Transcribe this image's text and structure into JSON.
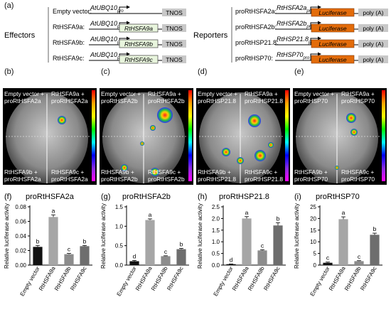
{
  "panel_a": {
    "label": "(a)",
    "effectors_title": "Effectors",
    "reporters_title": "Reporters",
    "effectors": [
      {
        "name": "Empty vector:",
        "promoter": "AtUBQ10",
        "promoter_sub": "pro",
        "gene": "",
        "terminator": "TNOS"
      },
      {
        "name": "RtHSFA9a:",
        "promoter": "AtUBQ10",
        "promoter_sub": "pro",
        "gene": "RtHSFA9a",
        "terminator": "TNOS"
      },
      {
        "name": "RtHSFA9b:",
        "promoter": "AtUBQ10",
        "promoter_sub": "pro",
        "gene": "RtHSFA9b",
        "terminator": "TNOS"
      },
      {
        "name": "RtHSFA9c:",
        "promoter": "AtUBQ10",
        "promoter_sub": "pro",
        "gene": "RtHSFA9c",
        "terminator": "TNOS"
      }
    ],
    "reporters": [
      {
        "name": "proRtHSFA2a:",
        "promoter": "RtHSFA2a",
        "promoter_sub": "pro",
        "gene": "Luciferase",
        "terminator": "poly (A)"
      },
      {
        "name": "proRtHSFA2b:",
        "promoter": "RtHSFA2b",
        "promoter_sub": "pro",
        "gene": "Luciferase",
        "terminator": "poly (A)"
      },
      {
        "name": "proRtHSP21.8:",
        "promoter": "RtHSP21.8",
        "promoter_sub": "pro",
        "gene": "Luciferase",
        "terminator": "poly (A)"
      },
      {
        "name": "proRtHSP70:",
        "promoter": "RtHSP70",
        "promoter_sub": "pro",
        "gene": "Luciferase",
        "terminator": "poly (A)"
      }
    ],
    "colors": {
      "gene_fill": "#e8f5dd",
      "luciferase_fill": "#e36c0a",
      "terminator_fill": "#c8c8c8"
    }
  },
  "photos": [
    {
      "label": "(b)",
      "tl": [
        "Empty vector +",
        "proRtHSFA2a"
      ],
      "tr": [
        "RtHSFA9a +",
        "proRtHSFA2a"
      ],
      "bl": [
        "RtHSFA9b +",
        "proRtHSFA2a"
      ],
      "br": [
        "RtHSFA9c +",
        "proRtHSFA2a"
      ]
    },
    {
      "label": "(c)",
      "tl": [
        "Empty vector +",
        "proRtHSFA2b"
      ],
      "tr": [
        "RtHSFA9a +",
        "proRtHSFA2b"
      ],
      "bl": [
        "RtHSFA9b +",
        "proRtHSFA2b"
      ],
      "br": [
        "RtHSFA9c +",
        "proRtHSFA2b"
      ]
    },
    {
      "label": "(d)",
      "tl": [
        "Empty vector +",
        "proRtHSP21.8"
      ],
      "tr": [
        "RtHSFA9a +",
        "proRtHSP21.8"
      ],
      "bl": [
        "RtHSFA9b +",
        "proRtHSP21.8"
      ],
      "br": [
        "RtHSFA9c +",
        "proRtHSP21.8"
      ]
    },
    {
      "label": "(e)",
      "tl": [
        "Empty vector +",
        "proRtHSP70"
      ],
      "tr": [
        "RtHSFA9a +",
        "proRtHSP70"
      ],
      "bl": [
        "RtHSFA9b +",
        "proRtHSP70"
      ],
      "br": [
        "RtHSFA9c +",
        "proRtHSP70"
      ]
    }
  ],
  "chart_data": [
    {
      "label": "(f)",
      "type": "bar",
      "title": "proRtHSFA2a",
      "ylabel": "Relative luciferase activity",
      "categories": [
        "Empty vector",
        "RtHSFA9a",
        "RtHSFA9b",
        "RtHSFA9c"
      ],
      "values": [
        0.025,
        0.066,
        0.015,
        0.026
      ],
      "errors": [
        0.002,
        0.003,
        0.001,
        0.001
      ],
      "letters": [
        "b",
        "a",
        "c",
        "b"
      ],
      "ylim": [
        0,
        0.08
      ],
      "yticks": [
        "0.00",
        "0.02",
        "0.04",
        "0.06",
        "0.08"
      ],
      "ytick_values": [
        0,
        0.02,
        0.04,
        0.06,
        0.08
      ],
      "colors": [
        "#111111",
        "#a6a6a6",
        "#8c8c8c",
        "#6e6e6e"
      ]
    },
    {
      "label": "(g)",
      "type": "bar",
      "title": "proRtHSFA2b",
      "ylabel": "Relative luciferase activity",
      "categories": [
        "Empty vector",
        "RtHSFA9a",
        "RtHSFA9b",
        "RtHSFA9c"
      ],
      "values": [
        0.1,
        1.16,
        0.23,
        0.41
      ],
      "errors": [
        0.02,
        0.03,
        0.01,
        0.02
      ],
      "letters": [
        "d",
        "a",
        "c",
        "b"
      ],
      "ylim": [
        0,
        1.5
      ],
      "yticks": [
        "0.0",
        "0.5",
        "1.0",
        "1.5"
      ],
      "ytick_values": [
        0,
        0.5,
        1.0,
        1.5
      ],
      "colors": [
        "#111111",
        "#a6a6a6",
        "#8c8c8c",
        "#6e6e6e"
      ]
    },
    {
      "label": "(h)",
      "type": "bar",
      "title": "proRtHSP21.8",
      "ylabel": "Relative luciferase activity",
      "categories": [
        "Empty vector",
        "RtHSFA9a",
        "RtHSFA9b",
        "RtHSFA9c"
      ],
      "values": [
        0.04,
        2.0,
        0.63,
        1.7
      ],
      "errors": [
        0.01,
        0.08,
        0.03,
        0.12
      ],
      "letters": [
        "d",
        "a",
        "c",
        "b"
      ],
      "ylim": [
        0,
        2.5
      ],
      "yticks": [
        "0.0",
        "0.5",
        "1.0",
        "1.5",
        "2.0",
        "2.5"
      ],
      "ytick_values": [
        0,
        0.5,
        1.0,
        1.5,
        2.0,
        2.5
      ],
      "colors": [
        "#111111",
        "#a6a6a6",
        "#8c8c8c",
        "#6e6e6e"
      ]
    },
    {
      "label": "(i)",
      "type": "bar",
      "title": "proRtHSP70",
      "ylabel": "Relative luciferase activity",
      "categories": [
        "Empty vector",
        "RtHSFA9a",
        "RtHSFA9b",
        "RtHSFA9c"
      ],
      "values": [
        1.0,
        19.7,
        1.7,
        13.0
      ],
      "errors": [
        0.3,
        1.0,
        0.2,
        0.7
      ],
      "letters": [
        "c",
        "a",
        "c",
        "b"
      ],
      "ylim": [
        0,
        25
      ],
      "yticks": [
        "0",
        "5",
        "10",
        "15",
        "20",
        "25"
      ],
      "ytick_values": [
        0,
        5,
        10,
        15,
        20,
        25
      ],
      "colors": [
        "#111111",
        "#a6a6a6",
        "#8c8c8c",
        "#6e6e6e"
      ]
    }
  ]
}
